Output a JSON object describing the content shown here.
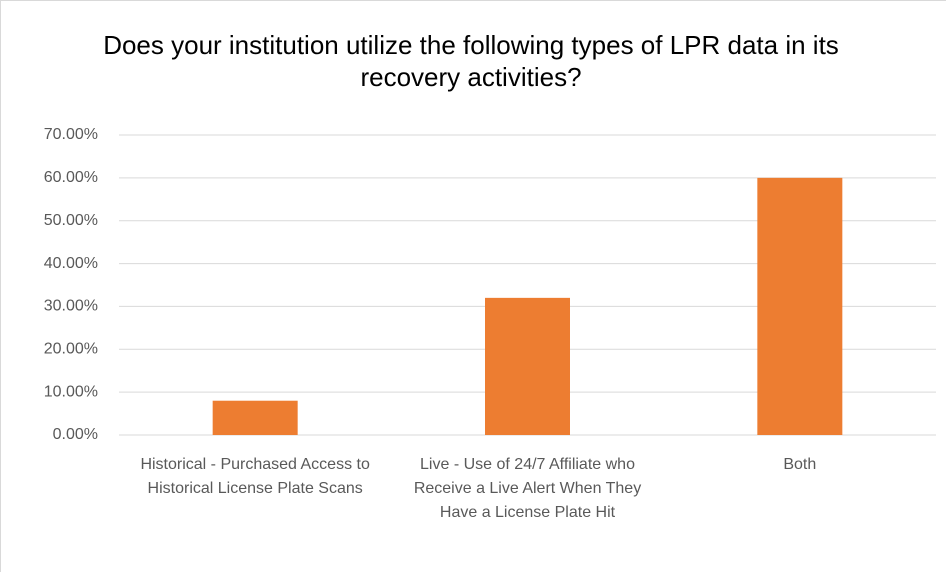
{
  "chart_data": {
    "type": "bar",
    "title": "Does your institution utilize the following types of LPR data in its recovery activities?",
    "categories": [
      "Historical - Purchased Access to Historical License Plate Scans",
      "Live - Use of 24/7 Affiliate who Receive a Live Alert When They Have a License Plate Hit",
      "Both"
    ],
    "values": [
      8,
      32,
      60
    ],
    "color": "#ed7d31",
    "ylim": [
      0,
      70
    ],
    "yticks": [
      {
        "value": 0,
        "label": "0.00%"
      },
      {
        "value": 10,
        "label": "10.00%"
      },
      {
        "value": 20,
        "label": "20.00%"
      },
      {
        "value": 30,
        "label": "30.00%"
      },
      {
        "value": 40,
        "label": "40.00%"
      },
      {
        "value": 50,
        "label": "50.00%"
      },
      {
        "value": 60,
        "label": "60.00%"
      },
      {
        "value": 70,
        "label": "70.00%"
      }
    ],
    "grid": true
  }
}
